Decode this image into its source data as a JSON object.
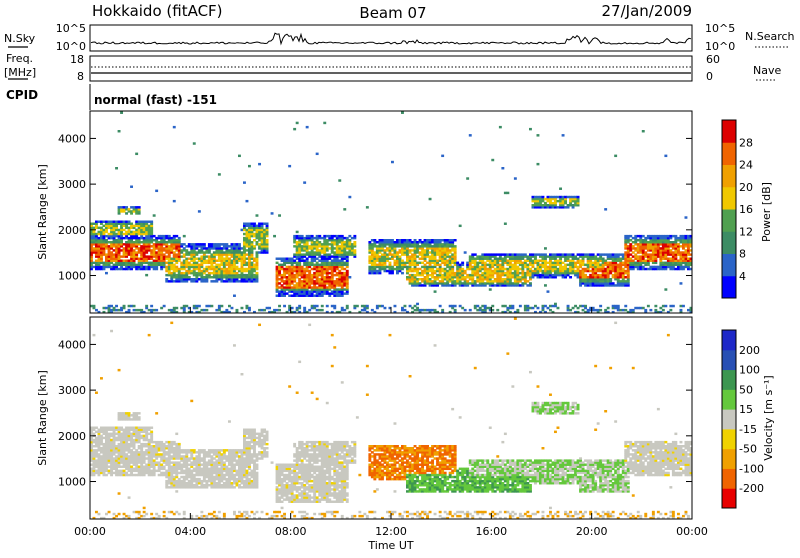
{
  "header": {
    "station": "Hokkaido (fitACF)",
    "beam": "Beam 07",
    "date": "27/Jan/2009"
  },
  "top_panel": {
    "left_label": "N.Sky",
    "right_label": "N.Search",
    "left_ticks": [
      "10^5",
      "10^0"
    ],
    "right_ticks": [
      "10^5",
      "10^0"
    ]
  },
  "freq_panel": {
    "left_label_line1": "Freq.",
    "left_label_line2": "[MHz]",
    "right_label": "Nave",
    "left_ticks": [
      "18",
      "8"
    ],
    "right_ticks": [
      "60",
      "0"
    ]
  },
  "cpid": {
    "label": "CPID",
    "mode": "normal (fast) -151"
  },
  "colors": {
    "power": [
      "#0000ff",
      "#2a64c8",
      "#3c8c64",
      "#50a050",
      "#f0c800",
      "#f0a000",
      "#f06400",
      "#dc0000"
    ],
    "velocity": [
      "#e80000",
      "#f06400",
      "#f0a000",
      "#f0d200",
      "#c8c8c0",
      "#64c83c",
      "#3c9650",
      "#2850b4",
      "#1e28c8"
    ]
  },
  "chart_data": [
    {
      "type": "heatmap",
      "name_text": "power",
      "xlabel": "",
      "ylabel": "Slant Range [km]",
      "x_ticks": [
        "00:00",
        "04:00",
        "08:00",
        "12:00",
        "16:00",
        "20:00",
        "00:00"
      ],
      "xlim": [
        0,
        24
      ],
      "ylim": [
        180,
        4600
      ],
      "y_ticks": [
        1000,
        2000,
        3000,
        4000
      ],
      "colorbar_label": "Power [dB]",
      "colorbar_ticks": [
        4,
        8,
        12,
        16,
        20,
        24,
        28
      ],
      "colorbar_range": [
        0,
        32
      ]
    },
    {
      "type": "heatmap",
      "name_text": "velocity",
      "xlabel": "Time UT",
      "ylabel": "Slant Range [km]",
      "x_ticks": [
        "00:00",
        "04:00",
        "08:00",
        "12:00",
        "16:00",
        "20:00",
        "00:00"
      ],
      "xlim": [
        0,
        24
      ],
      "ylim": [
        180,
        4600
      ],
      "y_ticks": [
        1000,
        2000,
        3000,
        4000
      ],
      "colorbar_label": "Velocity [m s⁻¹]",
      "colorbar_ticks": [
        "200",
        "100",
        "50",
        "15",
        "-15",
        "-50",
        "-100",
        "-200"
      ]
    }
  ]
}
